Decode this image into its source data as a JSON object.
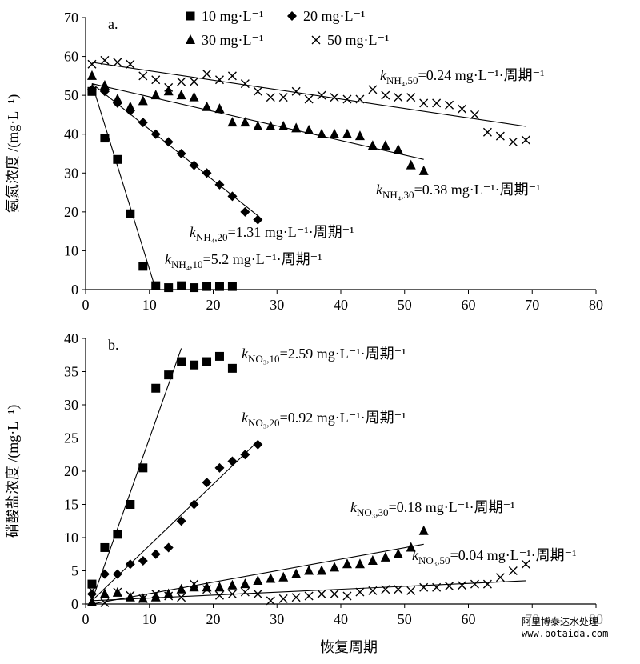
{
  "chart_data": [
    {
      "type": "scatter",
      "panel_label": "a.",
      "ylabel": "氨氮浓度 /(mg·L⁻¹)",
      "xlim": [
        0,
        80
      ],
      "xticks": [
        0,
        10,
        20,
        30,
        40,
        50,
        60,
        70,
        80
      ],
      "ylim": [
        0,
        70
      ],
      "yticks": [
        0,
        10,
        20,
        30,
        40,
        50,
        60,
        70
      ],
      "legend": true,
      "series": [
        {
          "name": "10 mg·L⁻¹",
          "marker": "square",
          "color": "#000000",
          "x": [
            1,
            3,
            5,
            7,
            9,
            11,
            13,
            15,
            17,
            19,
            21,
            23
          ],
          "y": [
            51,
            39,
            33.5,
            19.5,
            6,
            1,
            0.5,
            1,
            0.5,
            0.8,
            0.8,
            0.8
          ],
          "fit": {
            "x": [
              1,
              11
            ],
            "y": [
              53,
              0
            ]
          }
        },
        {
          "name": "20 mg·L⁻¹",
          "marker": "diamond",
          "color": "#000000",
          "x": [
            1,
            3,
            5,
            7,
            9,
            11,
            13,
            15,
            17,
            19,
            21,
            23,
            25,
            27
          ],
          "y": [
            51.5,
            51,
            48,
            46,
            43,
            40,
            38,
            35,
            32,
            30,
            27,
            24,
            20,
            18
          ],
          "fit": {
            "x": [
              1,
              27
            ],
            "y": [
              53,
              19
            ]
          }
        },
        {
          "name": "30 mg·L⁻¹",
          "marker": "triangle",
          "color": "#000000",
          "x": [
            1,
            3,
            5,
            7,
            9,
            11,
            13,
            15,
            17,
            19,
            21,
            23,
            25,
            27,
            29,
            31,
            33,
            35,
            37,
            39,
            41,
            43,
            45,
            47,
            49,
            51,
            53
          ],
          "y": [
            55,
            52.5,
            49,
            47,
            48.5,
            50,
            51,
            50,
            49.5,
            47,
            46.5,
            43,
            43,
            42,
            42,
            42,
            41.5,
            41,
            40,
            40,
            40,
            39.5,
            37,
            37,
            36,
            32,
            30.5
          ],
          "fit": {
            "x": [
              1,
              53
            ],
            "y": [
              53,
              33.5
            ]
          }
        },
        {
          "name": "50 mg·L⁻¹",
          "marker": "cross",
          "color": "#000000",
          "x": [
            1,
            3,
            5,
            7,
            9,
            11,
            13,
            15,
            17,
            19,
            21,
            23,
            25,
            27,
            29,
            31,
            33,
            35,
            37,
            39,
            41,
            43,
            45,
            47,
            49,
            51,
            53,
            55,
            57,
            59,
            61,
            63,
            65,
            67,
            69
          ],
          "y": [
            58,
            59,
            58.5,
            58,
            55,
            54,
            52,
            53.5,
            53.5,
            55.5,
            54,
            55,
            53,
            51,
            49.5,
            49.5,
            51,
            49,
            50,
            49.5,
            49,
            49,
            51.5,
            50,
            49.5,
            49.5,
            48,
            48,
            47.5,
            46.5,
            45,
            40.5,
            39.5,
            38,
            38.5
          ],
          "fit": {
            "x": [
              1,
              69
            ],
            "y": [
              58.5,
              42
            ]
          }
        }
      ],
      "annotations": [
        {
          "text": "k",
          "sub": "NH₄,50",
          "rest": "=0.24 mg·L⁻¹·周期⁻¹"
        },
        {
          "text": "k",
          "sub": "NH₄,30",
          "rest": "=0.38 mg·L⁻¹·周期⁻¹"
        },
        {
          "text": "k",
          "sub": "NH₄,20",
          "rest": "=1.31 mg·L⁻¹·周期⁻¹"
        },
        {
          "text": "k",
          "sub": "NH₄,10",
          "rest": "=5.2 mg·L⁻¹·周期⁻¹"
        }
      ]
    },
    {
      "type": "scatter",
      "panel_label": "b.",
      "ylabel": "硝酸盐浓度 /(mg·L⁻¹)",
      "xlabel": "恢复周期",
      "xlim": [
        0,
        80
      ],
      "xticks": [
        0,
        10,
        20,
        30,
        40,
        50,
        60,
        70,
        80
      ],
      "ylim": [
        0,
        40
      ],
      "yticks": [
        0,
        5,
        10,
        15,
        20,
        25,
        30,
        35,
        40
      ],
      "legend": false,
      "series": [
        {
          "marker": "square",
          "color": "#000000",
          "x": [
            1,
            3,
            5,
            7,
            9,
            11,
            13,
            15,
            17,
            19,
            21,
            23
          ],
          "y": [
            3,
            8.5,
            10.5,
            15,
            20.5,
            32.5,
            34.5,
            36.5,
            36,
            36.5,
            37.3,
            35.5
          ],
          "fit": {
            "x": [
              1,
              15
            ],
            "y": [
              0.5,
              38.5
            ]
          }
        },
        {
          "marker": "diamond",
          "color": "#000000",
          "x": [
            1,
            3,
            5,
            7,
            9,
            11,
            13,
            15,
            17,
            19,
            21,
            23,
            25,
            27
          ],
          "y": [
            1.5,
            4.5,
            4.5,
            6,
            6.5,
            7.5,
            8.5,
            12.5,
            15,
            18.3,
            20.5,
            21.5,
            22.5,
            24
          ],
          "fit": {
            "x": [
              1,
              27
            ],
            "y": [
              0.5,
              24.5
            ]
          }
        },
        {
          "marker": "triangle",
          "color": "#000000",
          "x": [
            1,
            3,
            5,
            7,
            9,
            11,
            13,
            15,
            17,
            19,
            21,
            23,
            25,
            27,
            29,
            31,
            33,
            35,
            37,
            39,
            41,
            43,
            45,
            47,
            49,
            51,
            53
          ],
          "y": [
            0.3,
            1.5,
            1.7,
            1,
            0.8,
            1,
            1.5,
            2.2,
            2.5,
            2.5,
            2.5,
            2.8,
            3,
            3.5,
            3.8,
            4,
            4.5,
            5,
            5,
            5.5,
            6,
            6,
            6.5,
            7,
            7.5,
            8.5,
            11
          ],
          "fit": {
            "x": [
              1,
              53
            ],
            "y": [
              0,
              9
            ]
          }
        },
        {
          "marker": "cross",
          "color": "#000000",
          "x": [
            1,
            3,
            5,
            7,
            9,
            11,
            13,
            15,
            17,
            19,
            21,
            23,
            25,
            27,
            29,
            31,
            33,
            35,
            37,
            39,
            41,
            43,
            45,
            47,
            49,
            51,
            53,
            55,
            57,
            59,
            61,
            63,
            65,
            67,
            69
          ],
          "y": [
            2,
            0.2,
            1.8,
            1.3,
            0.8,
            1.5,
            1.2,
            1,
            3,
            2.2,
            1.3,
            1.5,
            1.8,
            1.5,
            0.5,
            0.8,
            1,
            1.2,
            1.5,
            1.5,
            1.2,
            1.8,
            2,
            2.2,
            2.2,
            2,
            2.5,
            2.5,
            2.7,
            2.8,
            3,
            3,
            4,
            5,
            6
          ],
          "fit": {
            "x": [
              1,
              69
            ],
            "y": [
              0.5,
              3.5
            ]
          }
        }
      ],
      "annotations": [
        {
          "text": "k",
          "sub": "NO₃,10",
          "rest": "=2.59 mg·L⁻¹·周期⁻¹"
        },
        {
          "text": "k",
          "sub": "NO₃,20",
          "rest": "=0.92 mg·L⁻¹·周期⁻¹"
        },
        {
          "text": "k",
          "sub": "NO₃,30",
          "rest": "=0.18 mg·L⁻¹·周期⁻¹"
        },
        {
          "text": "k",
          "sub": "NO₃,50",
          "rest": "=0.04 mg·L⁻¹·周期⁻¹"
        }
      ]
    }
  ],
  "watermark": {
    "line1": "阿里博泰达水处理",
    "line2": "www.botaida.com"
  }
}
